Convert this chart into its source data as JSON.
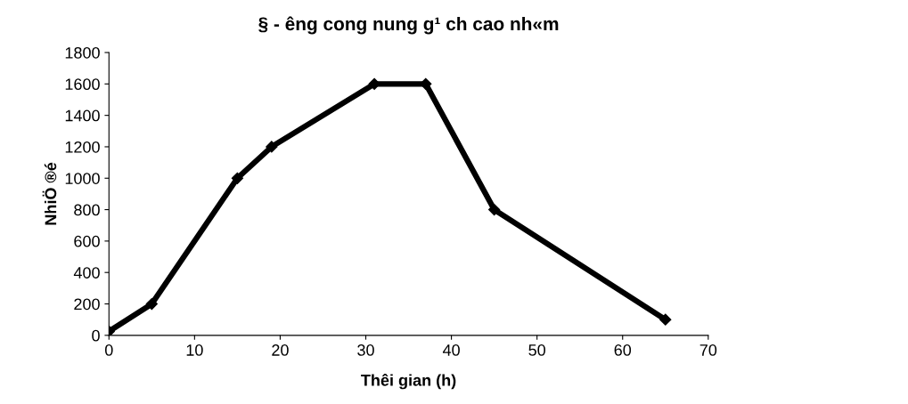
{
  "chart_data": {
    "type": "line",
    "title": "§ - êng cong nung g¹ ch cao nh«m",
    "xlabel": "Thêi gian (h)",
    "ylabel": "NhiÖ ®é",
    "x": [
      0,
      5,
      15,
      19,
      31,
      37,
      45,
      65
    ],
    "series": [
      {
        "color": "#000000",
        "values": [
          25,
          200,
          1000,
          1200,
          1600,
          1600,
          800,
          100
        ]
      }
    ],
    "xlim": [
      0,
      70
    ],
    "xticks": [
      0,
      10,
      20,
      30,
      40,
      50,
      60,
      70
    ],
    "ylim": [
      0,
      1800
    ],
    "yticks": [
      0,
      200,
      400,
      600,
      800,
      1000,
      1200,
      1400,
      1600,
      1800
    ],
    "grid": false,
    "legend": false,
    "marker": "diamond",
    "line_style": "solid"
  }
}
